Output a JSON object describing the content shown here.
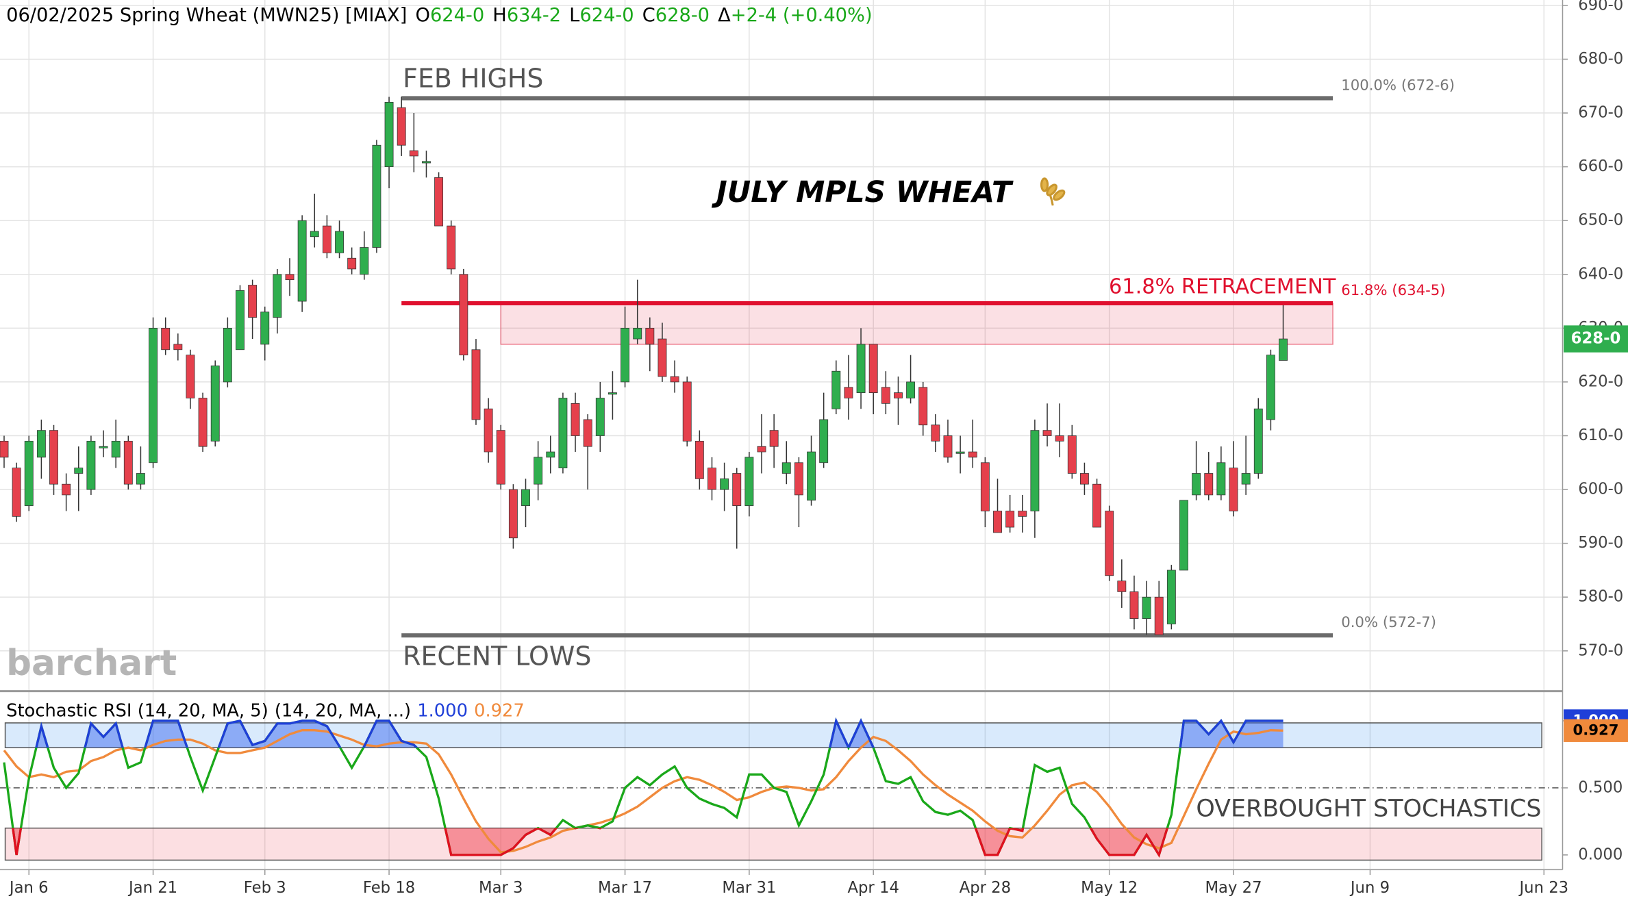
{
  "chart_data": [
    {
      "type": "candlestick",
      "header": {
        "title": "06/02/2025 Spring Wheat (MWN25) [MIAX]",
        "fields": [
          {
            "key": "O",
            "value": "624-0"
          },
          {
            "key": "H",
            "value": "634-2"
          },
          {
            "key": "L",
            "value": "624-0"
          },
          {
            "key": "C",
            "value": "628-0"
          },
          {
            "key": "Δ",
            "value": "+2-4 (+0.40%)"
          }
        ]
      },
      "title": "JULY MPLS WHEAT",
      "annotations": {
        "high": "FEB HIGHS",
        "low": "RECENT LOWS",
        "zone": "61.8% RETRACEMENT"
      },
      "watermark": "barchart",
      "last_label": "628-0",
      "open": [
        609,
        604,
        597,
        606,
        611,
        601,
        603,
        600,
        608,
        606,
        609,
        601,
        605,
        630,
        627,
        625,
        617,
        609,
        620,
        626,
        638,
        627,
        632,
        640,
        635,
        647,
        649,
        644,
        643,
        640,
        645,
        660,
        671,
        663,
        661,
        658,
        649,
        640,
        626,
        615,
        611,
        600,
        597,
        601,
        606,
        604,
        616,
        613,
        610,
        618,
        620,
        628,
        630,
        628,
        621,
        620,
        609,
        604,
        600,
        603,
        597,
        608,
        611,
        603,
        605,
        598,
        605,
        615,
        619,
        618,
        627,
        619,
        618,
        617,
        619,
        612,
        610,
        607,
        607,
        605,
        596,
        596,
        596,
        596,
        611,
        610,
        610,
        603,
        601,
        596,
        583,
        581,
        576,
        580,
        575,
        585,
        599,
        603,
        599,
        604,
        601,
        603,
        613,
        624
      ],
      "high": [
        610,
        605,
        610,
        613,
        612,
        603,
        608,
        610,
        611,
        613,
        610,
        608,
        632,
        632,
        629,
        626,
        618,
        624,
        632,
        638,
        639,
        634,
        641,
        643,
        651,
        655,
        651,
        650,
        645,
        648,
        665,
        673,
        673,
        670,
        663,
        659,
        650,
        641,
        628,
        617,
        612,
        601,
        602,
        609,
        610,
        618,
        618,
        614,
        620,
        622,
        634,
        639,
        632,
        631,
        624,
        621,
        611,
        606,
        605,
        604,
        607,
        614,
        614,
        609,
        606,
        610,
        618,
        624,
        625,
        630,
        627,
        622,
        621,
        625,
        620,
        614,
        613,
        610,
        613,
        606,
        602,
        599,
        599,
        613,
        616,
        616,
        612,
        605,
        602,
        597,
        587,
        584,
        583,
        583,
        586,
        598,
        609,
        607,
        608,
        609,
        610,
        617,
        626,
        634.25
      ],
      "low": [
        604,
        594,
        596,
        602,
        599,
        596,
        596,
        599,
        606,
        604,
        600,
        600,
        604,
        625,
        624,
        615,
        607,
        608,
        619,
        626,
        628,
        624,
        629,
        636,
        633,
        645,
        643,
        643,
        640,
        639,
        644,
        656,
        662,
        659,
        658,
        649,
        640,
        624,
        612,
        605,
        600,
        589,
        593,
        598,
        603,
        603,
        607,
        600,
        607,
        613,
        619,
        627,
        622,
        620,
        618,
        608,
        600,
        598,
        596,
        589,
        595,
        603,
        604,
        601,
        593,
        597,
        604,
        614,
        613,
        615,
        614,
        614,
        612,
        616,
        610,
        607,
        605,
        603,
        604,
        593,
        592,
        592,
        592,
        591,
        608,
        606,
        602,
        599,
        593,
        583,
        578,
        574,
        573,
        573,
        574,
        585,
        598,
        598,
        598,
        595,
        599,
        602,
        611,
        624
      ],
      "close": [
        606,
        595,
        609,
        611,
        601,
        599,
        604,
        609,
        608,
        609,
        601,
        603,
        630,
        626,
        626,
        617,
        608,
        623,
        630,
        637,
        632,
        633,
        640,
        639,
        650,
        648,
        644,
        648,
        641,
        645,
        664,
        672,
        664,
        662,
        661,
        649,
        641,
        625,
        613,
        607,
        601,
        591,
        600,
        606,
        607,
        617,
        610,
        608,
        617,
        618,
        630,
        630,
        627,
        621,
        620,
        609,
        602,
        600,
        602,
        597,
        606,
        607,
        608,
        605,
        599,
        607,
        613,
        622,
        617,
        627,
        618,
        616,
        617,
        620,
        612,
        609,
        606,
        607,
        606,
        596,
        592,
        593,
        595,
        611,
        610,
        609,
        603,
        601,
        593,
        584,
        581,
        576,
        580,
        573,
        585,
        598,
        603,
        599,
        605,
        596,
        603,
        615,
        625,
        628
      ],
      "fib": [
        {
          "value": 672.75,
          "label": "100.0% (672-6)",
          "from": 32,
          "to": 107,
          "color": "#6b6b6b"
        },
        {
          "value": 634.625,
          "label": "61.8% (634-5)",
          "from": 32,
          "to": 107,
          "color": "#e0102e"
        },
        {
          "value": 572.875,
          "label": "0.0% (572-7)",
          "from": 32,
          "to": 107,
          "color": "#6b6b6b"
        }
      ],
      "zone": {
        "from": 40,
        "to": 107,
        "range": [
          627,
          634.625
        ],
        "color": "#e0102e"
      },
      "up_color": "#2fae4e",
      "down_color": "#e5404c",
      "xlim": [
        -0.33,
        125.5
      ],
      "xticks": [
        {
          "value": 2,
          "label": "Jan 6"
        },
        {
          "value": 12,
          "label": "Jan 21"
        },
        {
          "value": 21,
          "label": "Feb 3"
        },
        {
          "value": 31,
          "label": "Feb 18"
        },
        {
          "value": 40,
          "label": "Mar 3"
        },
        {
          "value": 50,
          "label": "Mar 17"
        },
        {
          "value": 60,
          "label": "Mar 31"
        },
        {
          "value": 70,
          "label": "Apr 14"
        },
        {
          "value": 79,
          "label": "Apr 28"
        },
        {
          "value": 89,
          "label": "May 12"
        },
        {
          "value": 99,
          "label": "May 27"
        },
        {
          "value": 110,
          "label": "Jun 9"
        },
        {
          "value": 124,
          "label": "Jun 23"
        }
      ],
      "ylim": [
        562.7,
        691
      ],
      "yticks": [
        {
          "value": 570,
          "label": "570-0"
        },
        {
          "value": 580,
          "label": "580-0"
        },
        {
          "value": 590,
          "label": "590-0"
        },
        {
          "value": 600,
          "label": "600-0"
        },
        {
          "value": 610,
          "label": "610-0"
        },
        {
          "value": 620,
          "label": "620-0"
        },
        {
          "value": 630,
          "label": "630-0"
        },
        {
          "value": 640,
          "label": "640-0"
        },
        {
          "value": 650,
          "label": "650-0"
        },
        {
          "value": 660,
          "label": "660-0"
        },
        {
          "value": 670,
          "label": "670-0"
        },
        {
          "value": 680,
          "label": "680-0"
        },
        {
          "value": 690,
          "label": "690-0"
        }
      ],
      "grid": true
    },
    {
      "type": "line",
      "annotation": "OVERBOUGHT STOCHASTICS",
      "overbought": 0.8,
      "oversold": 0.2,
      "series": [
        {
          "name": "Stochastic RSI (14, 20, MA, 5)",
          "color": "#1aa81a",
          "last_label": "1.000",
          "values": [
            0.69,
            0,
            0.57,
            0.96,
            0.65,
            0.5,
            0.61,
            0.98,
            0.88,
            0.98,
            0.65,
            0.69,
            1,
            1,
            1,
            0.73,
            0.48,
            0.73,
            0.98,
            1,
            0.82,
            0.85,
            0.98,
            0.98,
            1,
            1,
            0.96,
            0.81,
            0.65,
            0.81,
            1,
            1,
            0.85,
            0.82,
            0.73,
            0.42,
            0,
            0,
            0,
            0,
            0,
            0.05,
            0.15,
            0.2,
            0.15,
            0.26,
            0.2,
            0.22,
            0.2,
            0.25,
            0.5,
            0.58,
            0.52,
            0.6,
            0.66,
            0.5,
            0.42,
            0.38,
            0.35,
            0.28,
            0.6,
            0.6,
            0.5,
            0.47,
            0.22,
            0.4,
            0.6,
            1,
            0.8,
            1,
            0.8,
            0.55,
            0.53,
            0.58,
            0.4,
            0.32,
            0.3,
            0.33,
            0.26,
            0,
            0,
            0.2,
            0.18,
            0.67,
            0.62,
            0.65,
            0.38,
            0.28,
            0.12,
            0,
            0,
            0,
            0.15,
            0,
            0.3,
            1,
            1,
            0.9,
            1,
            0.84,
            1,
            1,
            1,
            1
          ]
        },
        {
          "name": "(14, 20, MA, ...)",
          "color": "#f08a3c",
          "last_label": "0.927",
          "values": [
            0.78,
            0.66,
            0.58,
            0.6,
            0.58,
            0.62,
            0.63,
            0.7,
            0.73,
            0.78,
            0.8,
            0.78,
            0.82,
            0.85,
            0.86,
            0.86,
            0.83,
            0.78,
            0.76,
            0.76,
            0.78,
            0.8,
            0.85,
            0.9,
            0.93,
            0.93,
            0.92,
            0.89,
            0.86,
            0.82,
            0.81,
            0.83,
            0.84,
            0.84,
            0.83,
            0.75,
            0.6,
            0.42,
            0.25,
            0.12,
            0.02,
            0.03,
            0.06,
            0.1,
            0.13,
            0.18,
            0.2,
            0.22,
            0.24,
            0.27,
            0.31,
            0.36,
            0.43,
            0.5,
            0.55,
            0.58,
            0.56,
            0.52,
            0.47,
            0.41,
            0.43,
            0.47,
            0.5,
            0.51,
            0.5,
            0.48,
            0.49,
            0.58,
            0.7,
            0.8,
            0.88,
            0.85,
            0.78,
            0.7,
            0.6,
            0.52,
            0.45,
            0.39,
            0.33,
            0.25,
            0.18,
            0.14,
            0.13,
            0.22,
            0.33,
            0.45,
            0.52,
            0.54,
            0.47,
            0.36,
            0.23,
            0.13,
            0.08,
            0.05,
            0.09,
            0.29,
            0.49,
            0.68,
            0.86,
            0.92,
            0.9,
            0.91,
            0.93,
            0.927
          ]
        }
      ],
      "ylim": [
        -0.11,
        1.19
      ],
      "yticks": [
        {
          "value": 0,
          "label": "0.000"
        },
        {
          "value": 0.5,
          "label": "0.500"
        },
        {
          "value": 1,
          "label": "1.000"
        }
      ]
    }
  ]
}
